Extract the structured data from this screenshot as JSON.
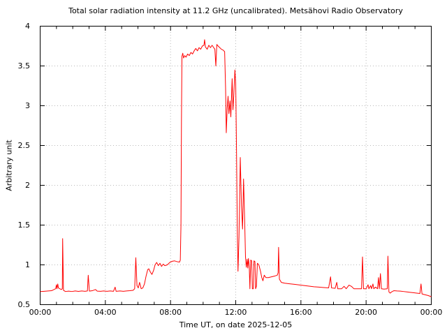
{
  "page": {
    "background": "#ffffff"
  },
  "chart_data": {
    "type": "line",
    "title": "Total solar radiation intensity at 11.2 GHz (uncalibrated). Metsähovi Radio Observatory",
    "xlabel": "Time UT, on date 2025-12-05",
    "ylabel": "Arbitrary unit",
    "xlim": [
      0,
      24
    ],
    "ylim": [
      0.5,
      4
    ],
    "x_unit": "hours UT",
    "xticks": {
      "values": [
        0,
        4,
        8,
        12,
        16,
        20,
        24
      ],
      "labels": [
        "00:00",
        "04:00",
        "08:00",
        "12:00",
        "16:00",
        "20:00",
        "00:00"
      ]
    },
    "x_minor_step": 1,
    "yticks": {
      "values": [
        0.5,
        1,
        1.5,
        2,
        2.5,
        3,
        3.5,
        4
      ],
      "labels": [
        "0.5",
        "1",
        "1.5",
        "2",
        "2.5",
        "3",
        "3.5",
        "4"
      ]
    },
    "grid": {
      "x_values": [
        4,
        8,
        12,
        16,
        20
      ],
      "y_values": [
        1,
        1.5,
        2,
        2.5,
        3,
        3.5
      ],
      "style": "dotted",
      "color": "#b8b8b8"
    },
    "axis_color": "#000000",
    "legend": "none",
    "series": [
      {
        "name": "total solar radiation intensity",
        "color": "#ff0000",
        "points": [
          [
            0,
            0.665
          ],
          [
            0.25,
            0.668
          ],
          [
            0.5,
            0.672
          ],
          [
            0.7,
            0.675
          ],
          [
            0.85,
            0.69
          ],
          [
            0.95,
            0.7
          ],
          [
            1,
            0.75
          ],
          [
            1.03,
            0.7
          ],
          [
            1.08,
            0.76
          ],
          [
            1.12,
            0.71
          ],
          [
            1.2,
            0.7
          ],
          [
            1.3,
            0.69
          ],
          [
            1.36,
            0.7
          ],
          [
            1.38,
            1.33
          ],
          [
            1.43,
            0.68
          ],
          [
            1.55,
            0.665
          ],
          [
            1.75,
            0.67
          ],
          [
            1.95,
            0.665
          ],
          [
            2.15,
            0.672
          ],
          [
            2.35,
            0.667
          ],
          [
            2.55,
            0.672
          ],
          [
            2.75,
            0.668
          ],
          [
            2.9,
            0.672
          ],
          [
            2.95,
            0.87
          ],
          [
            3.02,
            0.67
          ],
          [
            3.2,
            0.675
          ],
          [
            3.4,
            0.69
          ],
          [
            3.5,
            0.67
          ],
          [
            3.7,
            0.668
          ],
          [
            3.9,
            0.672
          ],
          [
            4.1,
            0.668
          ],
          [
            4.3,
            0.672
          ],
          [
            4.5,
            0.668
          ],
          [
            4.6,
            0.72
          ],
          [
            4.66,
            0.668
          ],
          [
            4.9,
            0.672
          ],
          [
            5.1,
            0.668
          ],
          [
            5.3,
            0.672
          ],
          [
            5.5,
            0.675
          ],
          [
            5.7,
            0.68
          ],
          [
            5.8,
            0.7
          ],
          [
            5.87,
            1.09
          ],
          [
            5.94,
            0.74
          ],
          [
            6.02,
            0.71
          ],
          [
            6.1,
            0.78
          ],
          [
            6.2,
            0.7
          ],
          [
            6.3,
            0.71
          ],
          [
            6.4,
            0.76
          ],
          [
            6.5,
            0.86
          ],
          [
            6.6,
            0.94
          ],
          [
            6.67,
            0.95
          ],
          [
            6.76,
            0.91
          ],
          [
            6.86,
            0.88
          ],
          [
            6.96,
            0.93
          ],
          [
            7.05,
            1
          ],
          [
            7.15,
            1.03
          ],
          [
            7.25,
            0.99
          ],
          [
            7.35,
            1.02
          ],
          [
            7.45,
            0.98
          ],
          [
            7.55,
            1.01
          ],
          [
            7.65,
            0.99
          ],
          [
            7.8,
            1
          ],
          [
            7.95,
            1.03
          ],
          [
            8.1,
            1.045
          ],
          [
            8.25,
            1.05
          ],
          [
            8.4,
            1.04
          ],
          [
            8.55,
            1.035
          ],
          [
            8.6,
            1.06
          ],
          [
            8.64,
            1.5
          ],
          [
            8.67,
            2.8
          ],
          [
            8.7,
            3.62
          ],
          [
            8.75,
            3.66
          ],
          [
            8.8,
            3.6
          ],
          [
            8.87,
            3.63
          ],
          [
            8.95,
            3.61
          ],
          [
            9.05,
            3.65
          ],
          [
            9.15,
            3.63
          ],
          [
            9.25,
            3.67
          ],
          [
            9.35,
            3.65
          ],
          [
            9.45,
            3.69
          ],
          [
            9.55,
            3.72
          ],
          [
            9.65,
            3.69
          ],
          [
            9.75,
            3.73
          ],
          [
            9.85,
            3.71
          ],
          [
            9.95,
            3.75
          ],
          [
            10.05,
            3.76
          ],
          [
            10.09,
            3.83
          ],
          [
            10.14,
            3.74
          ],
          [
            10.25,
            3.71
          ],
          [
            10.35,
            3.76
          ],
          [
            10.45,
            3.73
          ],
          [
            10.55,
            3.76
          ],
          [
            10.65,
            3.73
          ],
          [
            10.72,
            3.71
          ],
          [
            10.78,
            3.5
          ],
          [
            10.84,
            3.77
          ],
          [
            10.92,
            3.75
          ],
          [
            11.02,
            3.73
          ],
          [
            11.12,
            3.71
          ],
          [
            11.22,
            3.7
          ],
          [
            11.32,
            3.68
          ],
          [
            11.38,
            3.2
          ],
          [
            11.42,
            2.66
          ],
          [
            11.48,
            2.98
          ],
          [
            11.53,
            3.12
          ],
          [
            11.58,
            2.9
          ],
          [
            11.65,
            3.06
          ],
          [
            11.7,
            2.86
          ],
          [
            11.78,
            3.34
          ],
          [
            11.83,
            2.95
          ],
          [
            11.88,
            3.12
          ],
          [
            11.95,
            3.45
          ],
          [
            12,
            3.28
          ],
          [
            12.05,
            2.4
          ],
          [
            12.1,
            1.4
          ],
          [
            12.14,
            0.92
          ],
          [
            12.2,
            1.35
          ],
          [
            12.28,
            2.35
          ],
          [
            12.35,
            1.75
          ],
          [
            12.42,
            1.45
          ],
          [
            12.48,
            2.08
          ],
          [
            12.55,
            1.55
          ],
          [
            12.6,
            1.1
          ],
          [
            12.65,
            0.97
          ],
          [
            12.7,
            1.07
          ],
          [
            12.74,
            0.96
          ],
          [
            12.78,
            1.08
          ],
          [
            12.83,
            0.98
          ],
          [
            12.87,
            0.7
          ],
          [
            12.92,
            1.06
          ],
          [
            12.98,
            1.05
          ],
          [
            13.02,
            0.7
          ],
          [
            13.08,
            0.7
          ],
          [
            13.12,
            1.05
          ],
          [
            13.18,
            1.04
          ],
          [
            13.22,
            0.7
          ],
          [
            13.27,
            0.73
          ],
          [
            13.33,
            1.02
          ],
          [
            13.42,
            1
          ],
          [
            13.52,
            0.92
          ],
          [
            13.6,
            0.84
          ],
          [
            13.67,
            0.8
          ],
          [
            13.75,
            0.87
          ],
          [
            13.85,
            0.84
          ],
          [
            14,
            0.84
          ],
          [
            14.2,
            0.85
          ],
          [
            14.4,
            0.86
          ],
          [
            14.55,
            0.87
          ],
          [
            14.6,
            0.9
          ],
          [
            14.63,
            1.22
          ],
          [
            14.68,
            0.82
          ],
          [
            14.8,
            0.78
          ],
          [
            15,
            0.77
          ],
          [
            15.3,
            0.762
          ],
          [
            15.6,
            0.755
          ],
          [
            15.9,
            0.748
          ],
          [
            16.2,
            0.74
          ],
          [
            16.5,
            0.732
          ],
          [
            16.8,
            0.725
          ],
          [
            17.1,
            0.72
          ],
          [
            17.4,
            0.715
          ],
          [
            17.7,
            0.71
          ],
          [
            17.82,
            0.85
          ],
          [
            17.88,
            0.71
          ],
          [
            18.1,
            0.705
          ],
          [
            18.2,
            0.78
          ],
          [
            18.26,
            0.7
          ],
          [
            18.5,
            0.7
          ],
          [
            18.65,
            0.73
          ],
          [
            18.78,
            0.7
          ],
          [
            18.95,
            0.745
          ],
          [
            19.1,
            0.73
          ],
          [
            19.25,
            0.7
          ],
          [
            19.5,
            0.7
          ],
          [
            19.72,
            0.7
          ],
          [
            19.78,
            1.1
          ],
          [
            19.84,
            0.7
          ],
          [
            20,
            0.7
          ],
          [
            20.12,
            0.75
          ],
          [
            20.17,
            0.7
          ],
          [
            20.28,
            0.74
          ],
          [
            20.33,
            0.7
          ],
          [
            20.42,
            0.76
          ],
          [
            20.47,
            0.7
          ],
          [
            20.58,
            0.72
          ],
          [
            20.7,
            0.7
          ],
          [
            20.76,
            0.84
          ],
          [
            20.81,
            0.7
          ],
          [
            20.88,
            0.89
          ],
          [
            20.94,
            0.7
          ],
          [
            21.1,
            0.695
          ],
          [
            21.3,
            0.7
          ],
          [
            21.34,
            1.11
          ],
          [
            21.4,
            0.66
          ],
          [
            21.48,
            0.645
          ],
          [
            21.56,
            0.66
          ],
          [
            21.7,
            0.675
          ],
          [
            21.9,
            0.672
          ],
          [
            22.1,
            0.67
          ],
          [
            22.3,
            0.665
          ],
          [
            22.5,
            0.66
          ],
          [
            22.7,
            0.655
          ],
          [
            22.9,
            0.65
          ],
          [
            23.1,
            0.645
          ],
          [
            23.3,
            0.64
          ],
          [
            23.37,
            0.76
          ],
          [
            23.43,
            0.635
          ],
          [
            23.6,
            0.625
          ],
          [
            23.8,
            0.615
          ],
          [
            24,
            0.6
          ]
        ]
      }
    ]
  }
}
